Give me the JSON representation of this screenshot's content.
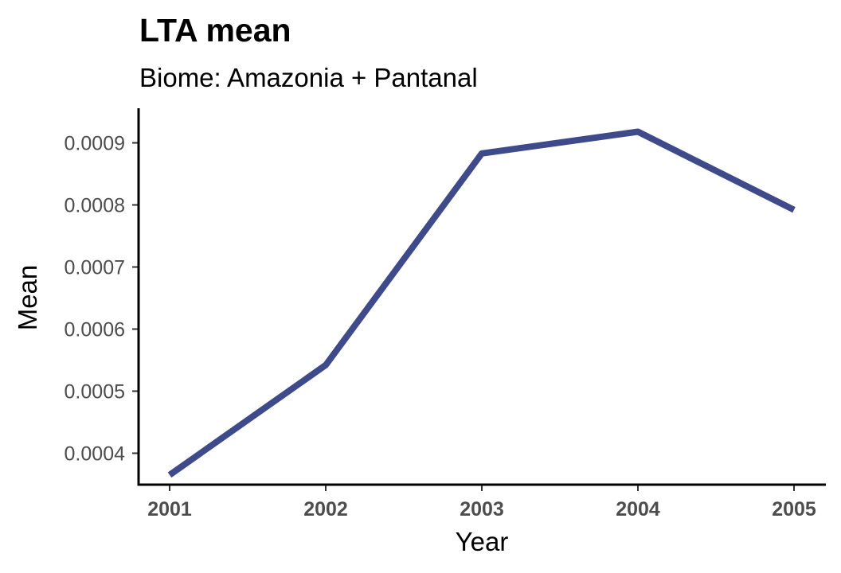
{
  "chart_data": {
    "type": "line",
    "title": "LTA mean",
    "subtitle": "Biome: Amazonia + Pantanal",
    "xlabel": "Year",
    "ylabel": "Mean",
    "x": [
      2001,
      2002,
      2003,
      2004,
      2005
    ],
    "x_tick_labels": [
      "2001",
      "2002",
      "2003",
      "2004",
      "2005"
    ],
    "y_ticks": [
      0.0004,
      0.0005,
      0.0006,
      0.0007,
      0.0008,
      0.0009
    ],
    "y_tick_labels": [
      "0.0004",
      "0.0005",
      "0.0006",
      "0.0007",
      "0.0008",
      "0.0009"
    ],
    "ylim": [
      0.00035,
      0.00095
    ],
    "xlim": [
      2001,
      2005
    ],
    "series": [
      {
        "values": [
          0.000365,
          0.000542,
          0.000883,
          0.000918,
          0.000792
        ],
        "color": "#3e4a89"
      }
    ],
    "grid": false,
    "legend": "none"
  }
}
